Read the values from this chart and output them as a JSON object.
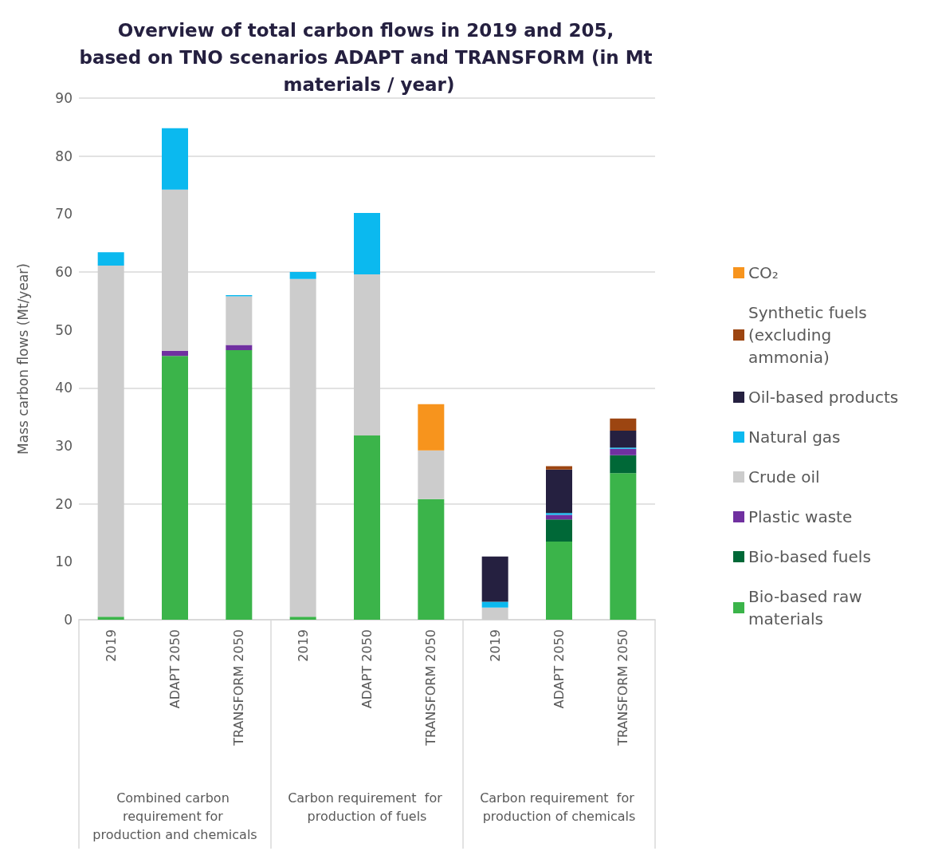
{
  "chart_data": {
    "type": "bar",
    "stacked": true,
    "title": "Overview of total carbon flows in 2019 and 205, based on TNO scenarios ADAPT and TRANSFORM (in Mt materials / year)",
    "ylabel": "Mass carbon flows (Mt/year)",
    "categories": [
      "2019",
      "ADAPT 2050",
      "TRANSFORM 2050",
      "2019",
      "ADAPT 2050",
      "TRANSFORM 2050",
      "2019",
      "ADAPT 2050",
      "TRANSFORM 2050"
    ],
    "annotations": [
      "Combined carbon requirement for production and chemicals",
      "Carbon requirement  for production of fuels",
      "Carbon requirement  for production of chemicals"
    ],
    "series": [
      {
        "name": "Bio-based raw materials",
        "color": "#3bb44a",
        "values": [
          0.5,
          45.5,
          46.5,
          0.5,
          31.8,
          20.8,
          null,
          13.5,
          25.3
        ]
      },
      {
        "name": "Bio-based fuels",
        "color": "#006837",
        "values": [
          null,
          null,
          null,
          null,
          null,
          null,
          null,
          3.8,
          3.1
        ]
      },
      {
        "name": "Plastic waste",
        "color": "#7030a0",
        "values": [
          null,
          0.9,
          0.9,
          null,
          null,
          null,
          null,
          0.8,
          1.1
        ]
      },
      {
        "name": "Crude oil",
        "color": "#cccccc",
        "values": [
          60.6,
          27.8,
          8.4,
          58.3,
          27.8,
          8.4,
          2.1,
          null,
          null
        ]
      },
      {
        "name": "Natural gas",
        "color": "#0bb9ef",
        "values": [
          2.3,
          10.6,
          0.2,
          1.2,
          10.6,
          null,
          1.0,
          0.3,
          0.2
        ]
      },
      {
        "name": "Oil-based products",
        "color": "#252040",
        "values": [
          null,
          null,
          null,
          null,
          null,
          null,
          7.8,
          7.5,
          2.9
        ]
      },
      {
        "name": "Synthetic fuels (excluding ammonia)",
        "color": "#9c4511",
        "values": [
          null,
          null,
          null,
          null,
          null,
          null,
          null,
          0.6,
          2.1
        ]
      },
      {
        "name": "CO₂",
        "color": "#f7941d",
        "values": [
          null,
          null,
          null,
          null,
          null,
          8.0,
          null,
          null,
          null
        ]
      }
    ],
    "ylim": [
      0,
      90
    ],
    "yticks": [
      0,
      10,
      20,
      30,
      40,
      50,
      60,
      70,
      80,
      90
    ],
    "grid": "y",
    "legend": "right"
  }
}
